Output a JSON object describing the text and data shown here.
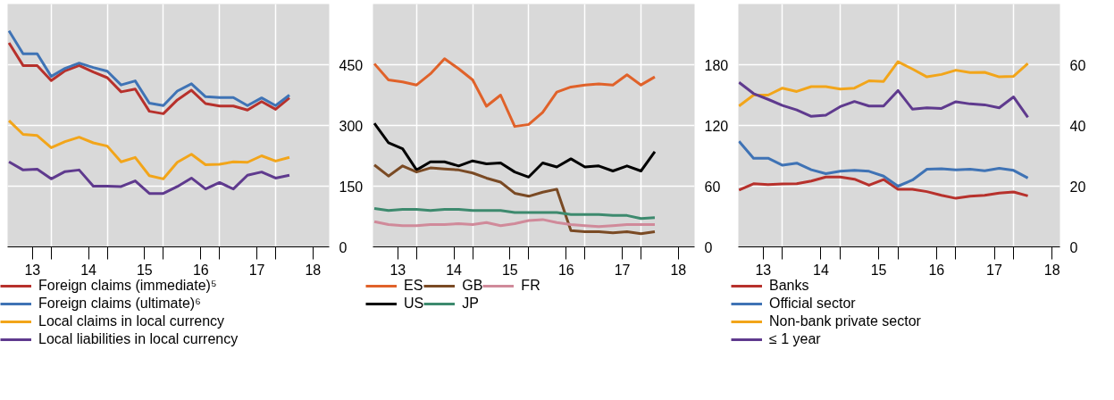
{
  "chart_data": [
    {
      "type": "line",
      "x": [
        "2013-03",
        "2013-06",
        "2013-09",
        "2013-12",
        "2014-03",
        "2014-06",
        "2014-09",
        "2014-12",
        "2015-03",
        "2015-06",
        "2015-09",
        "2015-12",
        "2016-03",
        "2016-06",
        "2016-09",
        "2016-12",
        "2017-03",
        "2017-06",
        "2017-09",
        "2017-12",
        "2018-03"
      ],
      "xlim": [
        "2013-02-20",
        "2018-11-15"
      ],
      "xticks": [
        {
          "value": "2013-08-01",
          "label": "13"
        },
        {
          "value": "2014-08-01",
          "label": "14"
        },
        {
          "value": "2015-08-01",
          "label": "15"
        },
        {
          "value": "2016-08-01",
          "label": "16"
        },
        {
          "value": "2017-08-01",
          "label": "17"
        },
        {
          "value": "2018-08-01",
          "label": "18"
        },
        {
          "value": "2013-12",
          "label": null
        },
        {
          "value": "2014-12",
          "label": null
        },
        {
          "value": "2015-12",
          "label": null
        },
        {
          "value": "2016-12",
          "label": null
        },
        {
          "value": "2017-12",
          "label": null
        }
      ],
      "ylim": [
        0,
        600
      ],
      "yticks": [
        0,
        150,
        300,
        450
      ],
      "grid": true,
      "legend": "bottom",
      "series": [
        {
          "name": "Foreign claims (immediate)⁵",
          "color": "#b7312c",
          "values": [
            504,
            448,
            448,
            411,
            435,
            448,
            432,
            418,
            383,
            390,
            335,
            329,
            363,
            387,
            354,
            348,
            348,
            338,
            359,
            340,
            368
          ]
        },
        {
          "name": "Foreign claims (ultimate)⁶",
          "color": "#3f73b5",
          "values": [
            534,
            477,
            477,
            421,
            441,
            454,
            443,
            434,
            400,
            410,
            355,
            349,
            385,
            403,
            371,
            369,
            369,
            349,
            368,
            349,
            375
          ]
        },
        {
          "name": "Local claims in local currency",
          "color": "#f2a51a",
          "values": [
            312,
            278,
            275,
            245,
            260,
            271,
            257,
            249,
            210,
            221,
            176,
            168,
            209,
            229,
            203,
            204,
            210,
            209,
            225,
            212,
            221
          ]
        },
        {
          "name": "Local liabilities in local currency",
          "color": "#5f3a8e",
          "values": [
            210,
            190,
            192,
            168,
            186,
            190,
            150,
            150,
            149,
            163,
            132,
            132,
            149,
            170,
            143,
            159,
            143,
            177,
            185,
            170,
            177
          ]
        }
      ]
    },
    {
      "type": "line",
      "x": [
        "2013-03",
        "2013-06",
        "2013-09",
        "2013-12",
        "2014-03",
        "2014-06",
        "2014-09",
        "2014-12",
        "2015-03",
        "2015-06",
        "2015-09",
        "2015-12",
        "2016-03",
        "2016-06",
        "2016-09",
        "2016-12",
        "2017-03",
        "2017-06",
        "2017-09",
        "2017-12",
        "2018-03"
      ],
      "xlim": [
        "2013-02-20",
        "2018-11-15"
      ],
      "xticks": [
        {
          "value": "2013-08-01",
          "label": "13"
        },
        {
          "value": "2014-08-01",
          "label": "14"
        },
        {
          "value": "2015-08-01",
          "label": "15"
        },
        {
          "value": "2016-08-01",
          "label": "16"
        },
        {
          "value": "2017-08-01",
          "label": "17"
        },
        {
          "value": "2018-08-01",
          "label": "18"
        },
        {
          "value": "2013-12",
          "label": null
        },
        {
          "value": "2014-12",
          "label": null
        },
        {
          "value": "2015-12",
          "label": null
        },
        {
          "value": "2016-12",
          "label": null
        },
        {
          "value": "2017-12",
          "label": null
        }
      ],
      "ylim": [
        0,
        240
      ],
      "yticks": [
        0,
        60,
        120,
        180
      ],
      "grid": true,
      "legend": "bottom",
      "series": [
        {
          "name": "ES",
          "color": "#e0622a",
          "values": [
            181,
            165,
            163,
            160,
            171,
            186,
            176,
            165,
            139,
            150,
            119,
            121,
            133,
            153,
            158,
            160,
            161,
            160,
            170,
            160,
            168
          ]
        },
        {
          "name": "US",
          "color": "#000000",
          "values": [
            122,
            103,
            97,
            76,
            84,
            84,
            80,
            85,
            82,
            83,
            74,
            69,
            83,
            79,
            87,
            79,
            80,
            75,
            80,
            75,
            94
          ]
        },
        {
          "name": "GB",
          "color": "#7a4a24",
          "values": [
            81,
            70,
            80,
            74,
            78,
            77,
            76,
            73,
            68,
            64,
            53,
            50,
            54,
            57,
            16,
            15,
            15,
            14,
            15,
            13,
            15
          ]
        },
        {
          "name": "JP",
          "color": "#3d8a6e",
          "values": [
            38,
            36,
            37,
            37,
            36,
            37,
            37,
            36,
            36,
            36,
            34,
            34,
            34,
            34,
            32,
            32,
            32,
            31,
            31,
            28,
            29
          ]
        },
        {
          "name": "FR",
          "color": "#d08a9a",
          "values": [
            25,
            22,
            21,
            21,
            22,
            22,
            23,
            22,
            24,
            21,
            23,
            26,
            27,
            24,
            22,
            21,
            20,
            21,
            22,
            22,
            22
          ]
        }
      ]
    },
    {
      "type": "line",
      "x": [
        "2013-03",
        "2013-06",
        "2013-09",
        "2013-12",
        "2014-03",
        "2014-06",
        "2014-09",
        "2014-12",
        "2015-03",
        "2015-06",
        "2015-09",
        "2015-12",
        "2016-03",
        "2016-06",
        "2016-09",
        "2016-12",
        "2017-03",
        "2017-06",
        "2017-09",
        "2017-12",
        "2018-03"
      ],
      "xlim": [
        "2013-02-25",
        "2018-09-20"
      ],
      "xticks": [
        {
          "value": "2013-08-01",
          "label": "13"
        },
        {
          "value": "2014-08-01",
          "label": "14"
        },
        {
          "value": "2015-08-01",
          "label": "15"
        },
        {
          "value": "2016-08-01",
          "label": "16"
        },
        {
          "value": "2017-08-01",
          "label": "17"
        },
        {
          "value": "2018-08-01",
          "label": "18"
        },
        {
          "value": "2013-12",
          "label": null
        },
        {
          "value": "2014-12",
          "label": null
        },
        {
          "value": "2015-12",
          "label": null
        },
        {
          "value": "2016-12",
          "label": null
        },
        {
          "value": "2017-12",
          "label": null
        }
      ],
      "ylim": [
        0,
        80
      ],
      "yticks": [
        0,
        20,
        40,
        60
      ],
      "grid": true,
      "legend": "bottom",
      "series": [
        {
          "name": "Banks",
          "color": "#b7312c",
          "values": [
            18.7,
            20.8,
            20.5,
            20.7,
            20.8,
            21.7,
            23,
            23,
            22.3,
            20.3,
            22.2,
            19,
            19,
            18.2,
            17,
            16,
            16.7,
            17,
            17.7,
            18.1,
            16.8
          ]
        },
        {
          "name": "Official sector",
          "color": "#3f73b5",
          "values": [
            34.8,
            29.2,
            29.2,
            26.9,
            27.6,
            25.4,
            24.1,
            24.9,
            25.2,
            24.9,
            23.3,
            20,
            22,
            25.6,
            25.7,
            25.4,
            25.6,
            25.1,
            25.9,
            25.2,
            22.7
          ]
        },
        {
          "name": "Non-bank private sector",
          "color": "#f2a51a",
          "values": [
            46.4,
            50,
            50,
            52.3,
            51.2,
            52.8,
            52.8,
            52,
            52.3,
            54.7,
            54.5,
            61,
            58.6,
            56,
            56.8,
            58.2,
            57.4,
            57.5,
            56,
            56.2,
            60.4
          ]
        },
        {
          "name": "≤ 1 year",
          "color": "#5f3a8e",
          "values": [
            54.2,
            50.5,
            48.6,
            46.6,
            45.1,
            43,
            43.4,
            46.2,
            47.9,
            46.4,
            46.4,
            51.5,
            45.4,
            45.8,
            45.6,
            47.8,
            47.1,
            46.8,
            45.8,
            49.4,
            42.7
          ]
        }
      ]
    }
  ]
}
